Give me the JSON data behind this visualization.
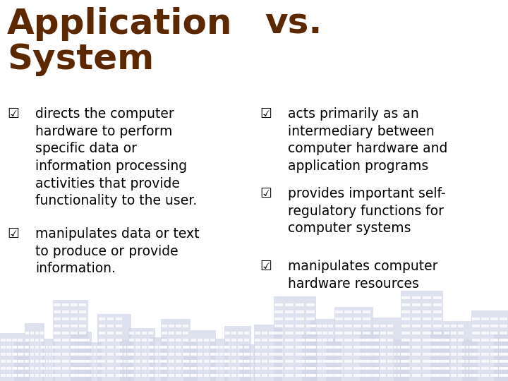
{
  "title_left": "Application\nSystem",
  "title_right": "vs.",
  "title_color": "#5C2800",
  "text_color": "#000000",
  "bg_color": "#FFFFFF",
  "left_bullets": [
    "directs the computer\nhardware to perform\nspecific data or\ninformation processing\nactivities that provide\nfunctionality to the user.",
    "manipulates data or text\nto produce or provide\ninformation."
  ],
  "right_bullets": [
    "acts primarily as an\nintermediary between\ncomputer hardware and\napplication programs",
    "provides important self-\nregulatory functions for\ncomputer systems",
    "manipulates computer\nhardware resources"
  ],
  "building_color": "#B8BDD8",
  "building_fill": "#D0D5E8",
  "figsize": [
    7.2,
    5.4
  ],
  "dpi": 100
}
